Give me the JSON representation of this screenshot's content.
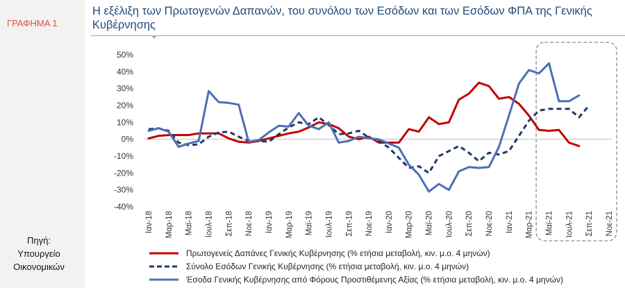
{
  "sidebar": {
    "figure_label": "ΓΡΑΦΗΜΑ 1",
    "source_lines": [
      "Πηγή:",
      "Υπουργείο",
      "Οικονομικών"
    ]
  },
  "chart_data": {
    "type": "line",
    "title": "Η εξέλιξη των Πρωτογενών Δαπανών, του συνόλου των Εσόδων και των Εσόδων ΦΠΑ της Γενικής Κυβέρνησης",
    "x": [
      "Ιαν-18",
      "Φεβ-18",
      "Μαρ-18",
      "Απρ-18",
      "Μαϊ-18",
      "Ιουν-18",
      "Ιουλ-18",
      "Αυγ-18",
      "Σεπ-18",
      "Οκτ-18",
      "Νοε-18",
      "Δεκ-18",
      "Ιαν-19",
      "Φεβ-19",
      "Μαρ-19",
      "Απρ-19",
      "Μαϊ-19",
      "Ιουν-19",
      "Ιουλ-19",
      "Αυγ-19",
      "Σεπ-19",
      "Οκτ-19",
      "Νοε-19",
      "Δεκ-19",
      "Ιαν-20",
      "Φεβ-20",
      "Μαρ-20",
      "Απρ-20",
      "Μαϊ-20",
      "Ιουν-20",
      "Ιουλ-20",
      "Αυγ-20",
      "Σεπ-20",
      "Οκτ-20",
      "Νοε-20",
      "Δεκ-20",
      "Ιαν-21",
      "Φεβ-21",
      "Μαρ-21",
      "Απρ-21",
      "Μαϊ-21",
      "Ιουν-21",
      "Ιουλ-21",
      "Αυγ-21",
      "Σεπ-21",
      "Οκτ-21",
      "Νοε-21"
    ],
    "x_tick_labels": [
      "Ιαν-18",
      "Μαρ-18",
      "Μαϊ-18",
      "Ιουλ-18",
      "Σεπ-18",
      "Νοε-18",
      "Ιαν-19",
      "Μαρ-19",
      "Μαϊ-19",
      "Ιουλ-19",
      "Σεπ-19",
      "Νοε-19",
      "Ιαν-20",
      "Μαρ-20",
      "Μαϊ-20",
      "Ιουλ-20",
      "Σεπ-20",
      "Νοε-20",
      "Ιαν-21",
      "Μαρ-21",
      "Μαϊ-21",
      "Ιουλ-21",
      "Σεπ-21",
      "Νοε-21"
    ],
    "y_ticks": [
      50,
      40,
      30,
      20,
      10,
      0,
      -10,
      -20,
      -30,
      -40
    ],
    "y_tick_format": "%",
    "ylim": [
      -40,
      50
    ],
    "grid": false,
    "legend_position": "bottom",
    "series": [
      {
        "name": "Πρωτογενείς Δαπάνες Γενικής Κυβέρνησης (% ετήσια μεταβολή, κιν. μ.ο. 4 μηνών)",
        "color": "#c00000",
        "dash": "solid",
        "values": [
          0.5,
          2,
          2.5,
          2.5,
          2.5,
          3.5,
          3.5,
          3.5,
          0.5,
          -1.5,
          -2,
          -1,
          0.5,
          2,
          3.5,
          4.5,
          7,
          10,
          9,
          6.5,
          1.5,
          0,
          1.5,
          -2,
          -2,
          -2,
          6,
          4.5,
          13,
          9,
          10,
          23.5,
          27,
          33.5,
          31.5,
          24,
          25,
          21,
          14,
          5.5,
          5,
          5.5,
          -2,
          -4,
          null,
          null,
          null
        ]
      },
      {
        "name": "Σύνολο Εσόδων Γενικής Κυβέρνησης (% ετήσια μεταβολή, κιν. μ.ο. 4 μηνών)",
        "color": "#1f3864",
        "dash": "dashed",
        "values": [
          6,
          6.5,
          5,
          -2,
          -3.5,
          -3,
          1.5,
          4,
          4.5,
          1.5,
          -1,
          -1,
          -1.5,
          3,
          7,
          10,
          9,
          13,
          8.5,
          3,
          3.5,
          5,
          1,
          -1,
          -5,
          -11,
          -17,
          -16,
          -20,
          -10,
          -7,
          -4,
          -8,
          -13,
          -8,
          -9,
          -7,
          2,
          11,
          17,
          18,
          18,
          18,
          13,
          20,
          null,
          null
        ]
      },
      {
        "name": "Έσοδα Γενικής Κυβέρνησης από Φόρους Προστιθέμενης Αξίας (% ετήσια μεταβολή, κιν. μ.ο. 4 μηνών)",
        "color": "#4a6fb5",
        "dash": "solid",
        "values": [
          5,
          6.5,
          4.5,
          -4.5,
          -2.5,
          -1,
          28.5,
          22,
          21.5,
          20.5,
          -1.5,
          -0.5,
          4,
          8,
          7.5,
          15.5,
          8,
          6,
          10,
          -2,
          -1,
          1.5,
          0.5,
          0,
          -2.5,
          -5,
          -15,
          -21,
          -31,
          -26.5,
          -30,
          -19,
          -16.5,
          -17,
          -16.5,
          -4.5,
          14,
          33,
          41,
          39,
          45,
          22.5,
          22.5,
          26,
          null,
          null,
          null
        ]
      }
    ],
    "highlight_box": {
      "from": "Απρ-21",
      "to": "Νοε-21"
    }
  }
}
